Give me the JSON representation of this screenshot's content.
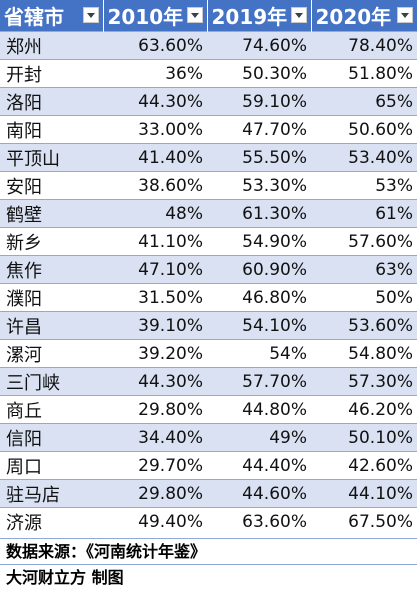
{
  "table": {
    "headers": [
      "省辖市",
      "2010年",
      "2019年",
      "2020年"
    ],
    "rows": [
      [
        "郑州",
        "63.60%",
        "74.60%",
        "78.40%"
      ],
      [
        "开封",
        "36%",
        "50.30%",
        "51.80%"
      ],
      [
        "洛阳",
        "44.30%",
        "59.10%",
        "65%"
      ],
      [
        "南阳",
        "33.00%",
        "47.70%",
        "50.60%"
      ],
      [
        "平顶山",
        "41.40%",
        "55.50%",
        "53.40%"
      ],
      [
        "安阳",
        "38.60%",
        "53.30%",
        "53%"
      ],
      [
        "鹤壁",
        "48%",
        "61.30%",
        "61%"
      ],
      [
        "新乡",
        "41.10%",
        "54.90%",
        "57.60%"
      ],
      [
        "焦作",
        "47.10%",
        "60.90%",
        "63%"
      ],
      [
        "濮阳",
        "31.50%",
        "46.80%",
        "50%"
      ],
      [
        "许昌",
        "39.10%",
        "54.10%",
        "53.60%"
      ],
      [
        "漯河",
        "39.20%",
        "54%",
        "54.80%"
      ],
      [
        "三门峡",
        "44.30%",
        "57.70%",
        "57.30%"
      ],
      [
        "商丘",
        "29.80%",
        "44.80%",
        "46.20%"
      ],
      [
        "信阳",
        "34.40%",
        "49%",
        "50.10%"
      ],
      [
        "周口",
        "29.70%",
        "44.40%",
        "42.60%"
      ],
      [
        "驻马店",
        "29.80%",
        "44.60%",
        "44.10%"
      ],
      [
        "济源",
        "49.40%",
        "63.60%",
        "67.50%"
      ]
    ]
  },
  "source_note": "数据来源：《河南统计年鉴》",
  "credit": "大河财立方 制图",
  "colors": {
    "header_bg": "#4472c4",
    "band_bg": "#d9e1f2",
    "border": "#8ea9db"
  },
  "icons": {
    "filter": "filter-dropdown-icon"
  }
}
